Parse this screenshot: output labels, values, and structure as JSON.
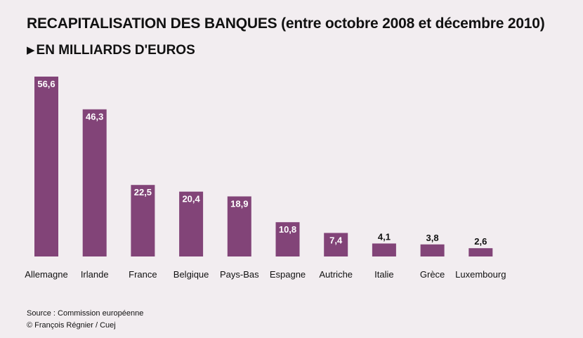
{
  "header": {
    "title": "RECAPITALISATION DES BANQUES (entre octobre 2008 et décembre 2010)",
    "subtitle": "EN MILLIARDS D'EUROS"
  },
  "footer": {
    "source": "Source : Commission européenne",
    "credit": "© François Régnier / Cuej"
  },
  "colors": {
    "bar": "#824478",
    "background": "#f2edf0",
    "label_inside": "#ffffff",
    "label_outside": "#111111"
  },
  "chart_data": {
    "type": "bar",
    "title": "RECAPITALISATION DES BANQUES (entre octobre 2008 et décembre 2010)",
    "subtitle": "EN MILLIARDS D'EUROS",
    "categories": [
      "Allemagne",
      "Irlande",
      "France",
      "Belgique",
      "Pays-Bas",
      "Espagne",
      "Autriche",
      "Italie",
      "Grèce",
      "Luxembourg"
    ],
    "values": [
      56.6,
      46.3,
      22.5,
      20.4,
      18.9,
      10.8,
      7.4,
      4.1,
      3.8,
      2.6
    ],
    "value_labels": [
      "56,6",
      "46,3",
      "22,5",
      "20,4",
      "18,9",
      "10,8",
      "7,4",
      "4,1",
      "3,8",
      "2,6"
    ],
    "xlabel": "",
    "ylabel": "",
    "ylim": [
      0,
      56.6
    ],
    "grid": false,
    "legend": "none"
  }
}
